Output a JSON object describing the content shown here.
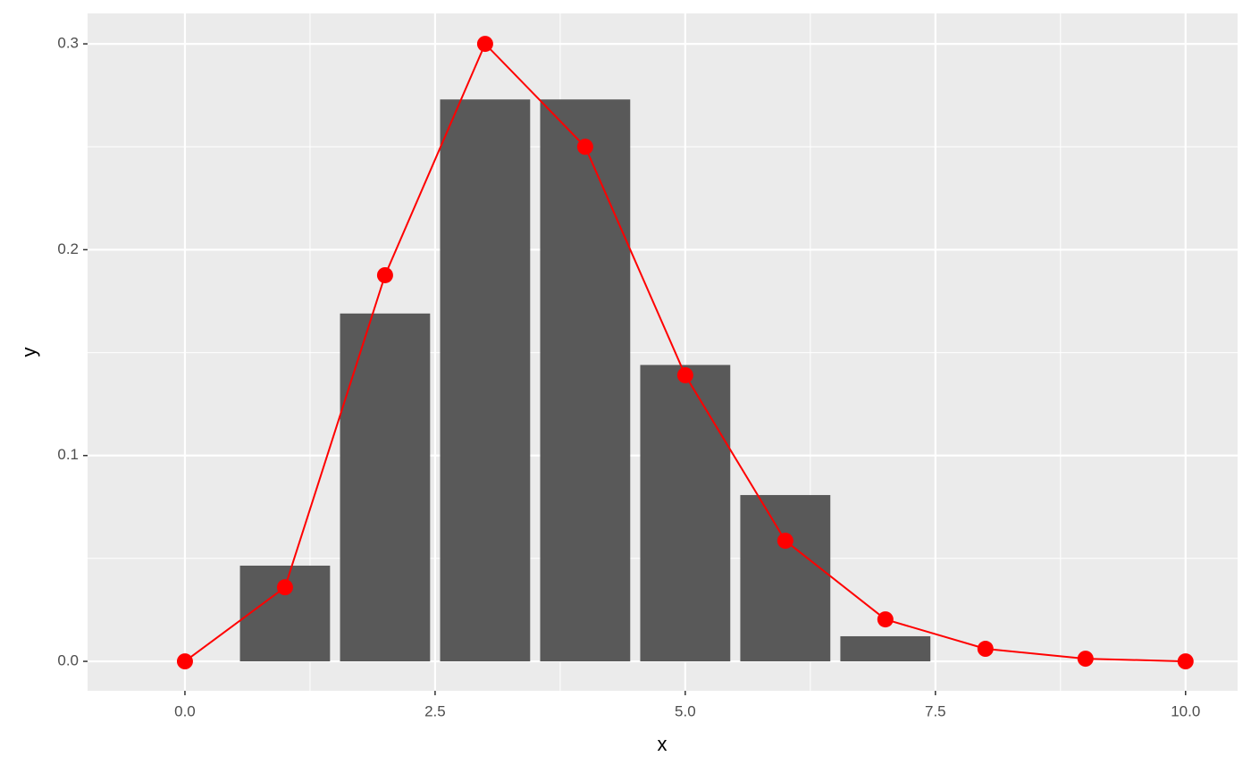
{
  "chart_data": {
    "type": "combo",
    "xlabel": "x",
    "ylabel": "y",
    "xlim": [
      -0.973,
      10.52
    ],
    "ylim": [
      -0.0143,
      0.3148
    ],
    "xticks": [
      {
        "value": 0,
        "label": "0.0"
      },
      2.5,
      {
        "value": 5,
        "label": "5.0"
      },
      7.5,
      {
        "value": 10,
        "label": "10.0"
      }
    ],
    "yticks": [
      {
        "value": 0,
        "label": "0.0"
      },
      0.1,
      0.2,
      0.3
    ],
    "grid": true,
    "series": [
      {
        "type": "bar",
        "color": "#595959",
        "x": [
          1,
          2,
          3,
          4,
          5,
          6,
          7
        ],
        "values": [
          0.0465,
          0.169,
          0.273,
          0.273,
          0.144,
          0.0808,
          0.0122
        ]
      },
      {
        "type": "line",
        "color": "#ff0000",
        "x": [
          0,
          1,
          2,
          3,
          4,
          5,
          6,
          7,
          8,
          9,
          10
        ],
        "values": [
          0,
          0.036,
          0.1876,
          0.3,
          0.25,
          0.139,
          0.0586,
          0.0204,
          0.0061,
          0.0013,
          0
        ]
      }
    ]
  }
}
